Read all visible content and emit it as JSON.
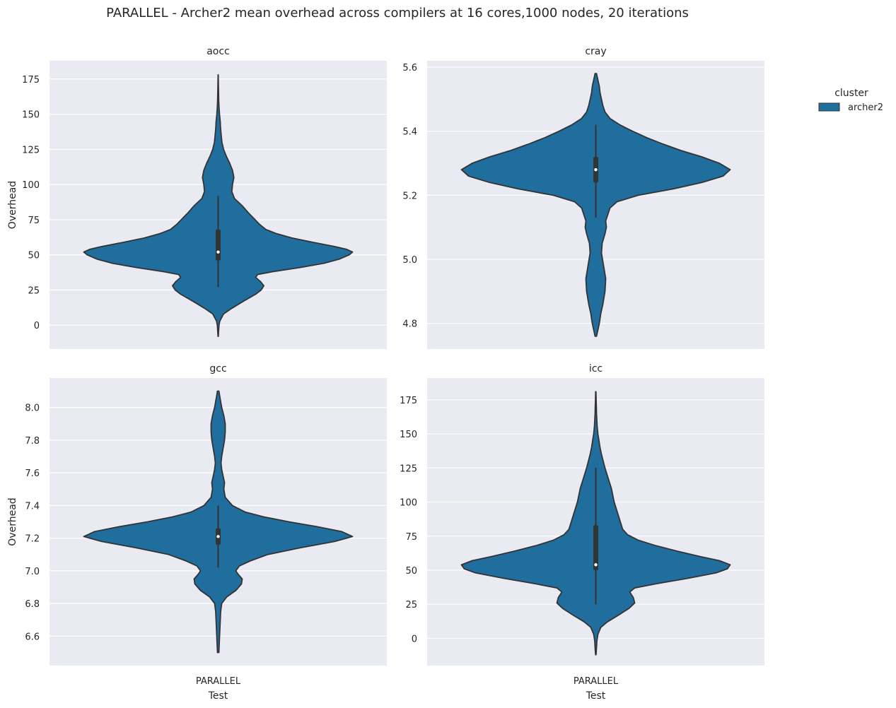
{
  "title": "PARALLEL - Archer2 mean overhead across compilers at 16 cores,1000 nodes, 20 iterations",
  "legend": {
    "title": "cluster",
    "entries": [
      {
        "label": "archer2",
        "color": "#1f6e9e"
      }
    ]
  },
  "colors": {
    "background": "#eaeaf2",
    "grid": "#ffffff",
    "violet_fill": "#1f6e9e",
    "edge": "#333333"
  },
  "chart_data": [
    {
      "type": "violin",
      "title": "aocc",
      "xlabel": "",
      "ylabel": "Overhead",
      "categories": [
        "PARALLEL"
      ],
      "ylim": [
        -17,
        188
      ],
      "yticks": [
        0,
        25,
        50,
        75,
        100,
        125,
        150,
        175
      ],
      "ytick_labels": [
        "0",
        "25",
        "50",
        "75",
        "100",
        "125",
        "150",
        "175"
      ],
      "series": [
        {
          "name": "archer2",
          "min": -8,
          "q1": 46,
          "median": 52,
          "q3": 68,
          "whisker_low": 27,
          "whisker_high": 92,
          "max": 178,
          "density": [
            [
              -8,
              0.2
            ],
            [
              -3,
              0.8
            ],
            [
              0,
              1.2
            ],
            [
              3,
              2.5
            ],
            [
              8,
              8
            ],
            [
              12,
              20
            ],
            [
              17,
              37
            ],
            [
              22,
              55
            ],
            [
              25,
              63
            ],
            [
              28,
              67
            ],
            [
              31,
              62
            ],
            [
              34,
              55
            ],
            [
              36,
              58
            ],
            [
              38,
              80
            ],
            [
              41,
              120
            ],
            [
              44,
              155
            ],
            [
              47,
              178
            ],
            [
              50,
              192
            ],
            [
              52,
              197
            ],
            [
              54,
              188
            ],
            [
              56,
              170
            ],
            [
              59,
              138
            ],
            [
              62,
              108
            ],
            [
              65,
              86
            ],
            [
              68,
              70
            ],
            [
              72,
              60
            ],
            [
              76,
              52
            ],
            [
              80,
              44
            ],
            [
              85,
              35
            ],
            [
              90,
              24
            ],
            [
              95,
              20
            ],
            [
              100,
              21
            ],
            [
              105,
              23
            ],
            [
              110,
              21
            ],
            [
              115,
              17
            ],
            [
              120,
              12
            ],
            [
              125,
              8
            ],
            [
              130,
              5.5
            ],
            [
              135,
              4.5
            ],
            [
              140,
              3.5
            ],
            [
              145,
              3
            ],
            [
              150,
              2
            ],
            [
              155,
              1.2
            ],
            [
              160,
              0.8
            ],
            [
              165,
              0.6
            ],
            [
              170,
              0.4
            ],
            [
              175,
              0.2
            ],
            [
              178,
              0.1
            ]
          ]
        }
      ]
    },
    {
      "type": "violin",
      "title": "cray",
      "xlabel": "",
      "ylabel": "",
      "categories": [
        "PARALLEL"
      ],
      "ylim": [
        4.72,
        5.62
      ],
      "yticks": [
        4.8,
        5.0,
        5.2,
        5.4,
        5.6
      ],
      "ytick_labels": [
        "4.8",
        "5.0",
        "5.2",
        "5.4",
        "5.6"
      ],
      "series": [
        {
          "name": "archer2",
          "min": 4.76,
          "q1": 5.24,
          "median": 5.28,
          "q3": 5.32,
          "whisker_low": 5.13,
          "whisker_high": 5.42,
          "max": 5.58,
          "density": [
            [
              4.76,
              1
            ],
            [
              4.78,
              3
            ],
            [
              4.8,
              5
            ],
            [
              4.83,
              7
            ],
            [
              4.86,
              10
            ],
            [
              4.9,
              13
            ],
            [
              4.94,
              14
            ],
            [
              4.98,
              11
            ],
            [
              5.02,
              8
            ],
            [
              5.05,
              9
            ],
            [
              5.08,
              13
            ],
            [
              5.1,
              15
            ],
            [
              5.12,
              14
            ],
            [
              5.14,
              17
            ],
            [
              5.16,
              20
            ],
            [
              5.18,
              30
            ],
            [
              5.2,
              60
            ],
            [
              5.22,
              110
            ],
            [
              5.24,
              150
            ],
            [
              5.26,
              180
            ],
            [
              5.28,
              190
            ],
            [
              5.3,
              175
            ],
            [
              5.32,
              150
            ],
            [
              5.34,
              120
            ],
            [
              5.36,
              95
            ],
            [
              5.38,
              72
            ],
            [
              5.4,
              52
            ],
            [
              5.42,
              34
            ],
            [
              5.44,
              20
            ],
            [
              5.46,
              13
            ],
            [
              5.48,
              10
            ],
            [
              5.5,
              8
            ],
            [
              5.52,
              6
            ],
            [
              5.54,
              5
            ],
            [
              5.56,
              3
            ],
            [
              5.58,
              1
            ]
          ]
        }
      ]
    },
    {
      "type": "violin",
      "title": "gcc",
      "xlabel": "Test",
      "ylabel": "Overhead",
      "categories": [
        "PARALLEL"
      ],
      "ylim": [
        6.42,
        8.18
      ],
      "yticks": [
        6.6,
        6.8,
        7.0,
        7.2,
        7.4,
        7.6,
        7.8,
        8.0
      ],
      "ytick_labels": [
        "6.6",
        "6.8",
        "7.0",
        "7.2",
        "7.4",
        "7.6",
        "7.8",
        "8.0"
      ],
      "series": [
        {
          "name": "archer2",
          "min": 6.5,
          "q1": 7.16,
          "median": 7.21,
          "q3": 7.26,
          "whisker_low": 7.02,
          "whisker_high": 7.4,
          "max": 8.1,
          "density": [
            [
              6.5,
              1
            ],
            [
              6.55,
              1.5
            ],
            [
              6.6,
              2
            ],
            [
              6.65,
              2.5
            ],
            [
              6.7,
              3
            ],
            [
              6.75,
              3.5
            ],
            [
              6.8,
              5
            ],
            [
              6.84,
              12
            ],
            [
              6.88,
              25
            ],
            [
              6.92,
              33
            ],
            [
              6.95,
              34
            ],
            [
              6.98,
              28
            ],
            [
              7.0,
              25
            ],
            [
              7.03,
              30
            ],
            [
              7.06,
              45
            ],
            [
              7.1,
              70
            ],
            [
              7.14,
              115
            ],
            [
              7.18,
              165
            ],
            [
              7.21,
              190
            ],
            [
              7.24,
              175
            ],
            [
              7.27,
              140
            ],
            [
              7.3,
              100
            ],
            [
              7.33,
              65
            ],
            [
              7.36,
              38
            ],
            [
              7.4,
              20
            ],
            [
              7.45,
              10
            ],
            [
              7.5,
              8
            ],
            [
              7.54,
              9
            ],
            [
              7.58,
              7
            ],
            [
              7.62,
              5
            ],
            [
              7.66,
              4
            ],
            [
              7.7,
              5
            ],
            [
              7.75,
              7
            ],
            [
              7.8,
              9
            ],
            [
              7.85,
              10
            ],
            [
              7.9,
              10
            ],
            [
              7.95,
              8
            ],
            [
              8.0,
              5
            ],
            [
              8.05,
              3
            ],
            [
              8.1,
              1
            ]
          ]
        }
      ]
    },
    {
      "type": "violin",
      "title": "icc",
      "xlabel": "Test",
      "ylabel": "",
      "categories": [
        "PARALLEL"
      ],
      "ylim": [
        -20,
        191
      ],
      "yticks": [
        0,
        25,
        50,
        75,
        100,
        125,
        150,
        175
      ],
      "ytick_labels": [
        "0",
        "25",
        "50",
        "75",
        "100",
        "125",
        "150",
        "175"
      ],
      "series": [
        {
          "name": "archer2",
          "min": -12,
          "q1": 50,
          "median": 54,
          "q3": 83,
          "whisker_low": 25,
          "whisker_high": 125,
          "max": 181,
          "density": [
            [
              -12,
              0.3
            ],
            [
              -7,
              1
            ],
            [
              -2,
              1.5
            ],
            [
              3,
              3
            ],
            [
              8,
              7
            ],
            [
              12,
              16
            ],
            [
              17,
              32
            ],
            [
              22,
              47
            ],
            [
              26,
              55
            ],
            [
              30,
              53
            ],
            [
              34,
              48
            ],
            [
              37,
              55
            ],
            [
              40,
              85
            ],
            [
              44,
              130
            ],
            [
              48,
              170
            ],
            [
              51,
              186
            ],
            [
              54,
              190
            ],
            [
              57,
              175
            ],
            [
              60,
              148
            ],
            [
              64,
              115
            ],
            [
              68,
              85
            ],
            [
              72,
              60
            ],
            [
              76,
              45
            ],
            [
              80,
              38
            ],
            [
              85,
              35
            ],
            [
              90,
              32
            ],
            [
              95,
              29
            ],
            [
              100,
              26
            ],
            [
              105,
              24
            ],
            [
              110,
              22
            ],
            [
              115,
              19
            ],
            [
              120,
              16
            ],
            [
              125,
              13
            ],
            [
              130,
              10.5
            ],
            [
              135,
              8
            ],
            [
              140,
              6
            ],
            [
              145,
              4.5
            ],
            [
              150,
              3
            ],
            [
              155,
              2
            ],
            [
              160,
              1.5
            ],
            [
              165,
              1
            ],
            [
              170,
              0.8
            ],
            [
              175,
              0.5
            ],
            [
              181,
              0.2
            ]
          ]
        }
      ]
    }
  ]
}
